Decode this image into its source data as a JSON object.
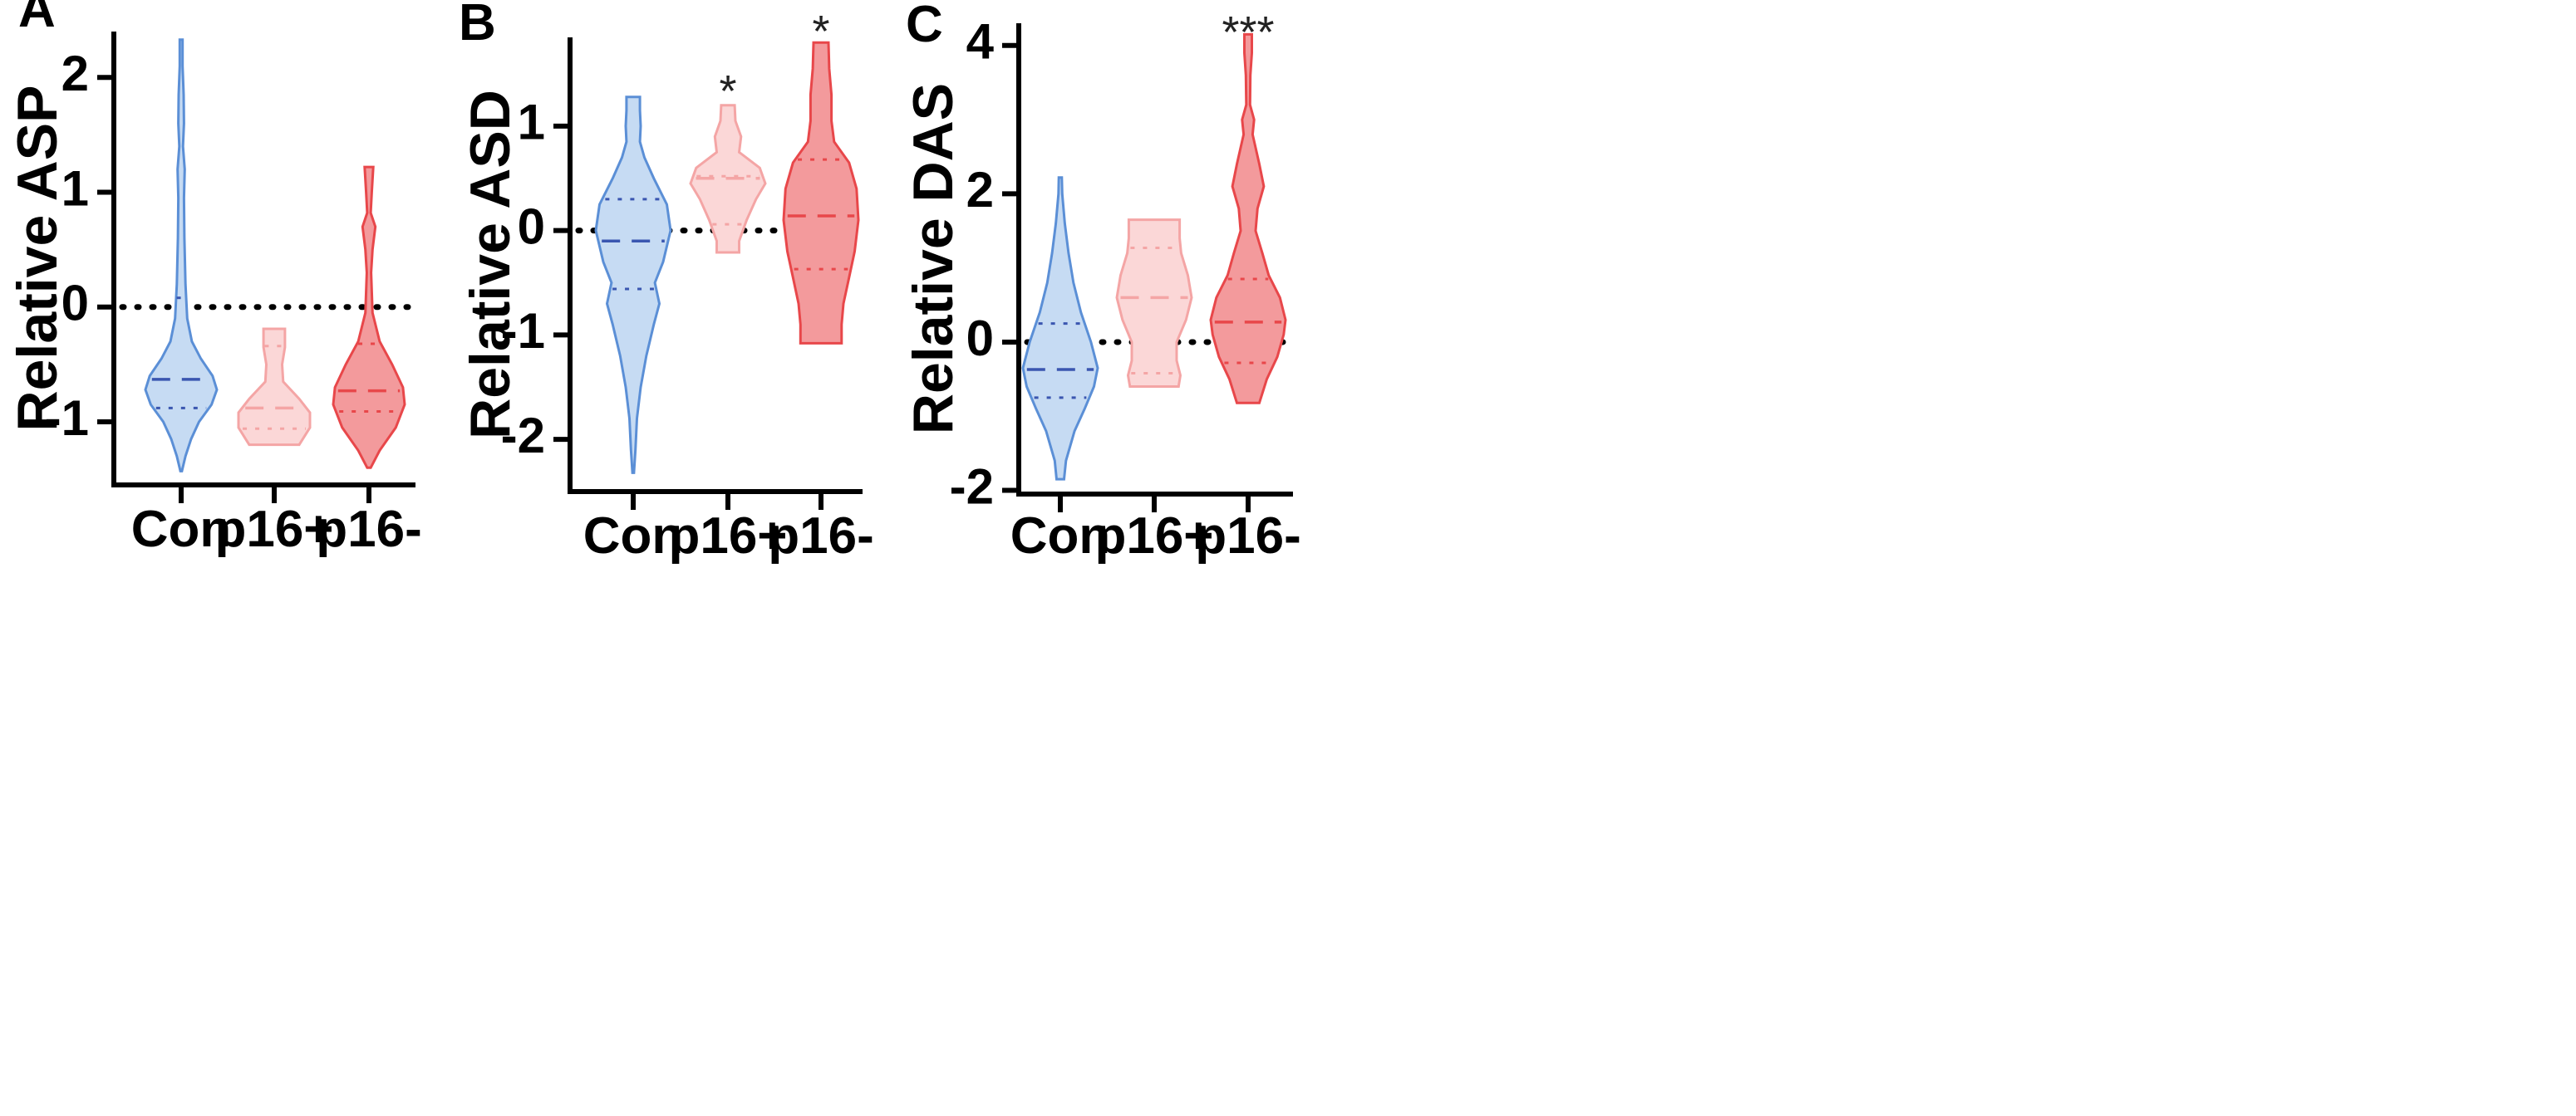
{
  "chart_data": [
    {
      "panel": "A",
      "type": "violin",
      "ylabel": "Relative  ASP",
      "ylim": [
        -1.55,
        2.4
      ],
      "yticks": [
        -1,
        0,
        1,
        2
      ],
      "reference_line": 0,
      "categories": [
        "Con",
        "p16+",
        "p16-"
      ],
      "groups": [
        {
          "name": "Con",
          "color": "#5b8fd6",
          "fill": "#c6dbf3",
          "min": -1.43,
          "max": 2.33,
          "median": -0.63,
          "q1": -0.88,
          "q3": 0.08,
          "profile": [
            [
              -1.43,
              0.02
            ],
            [
              -1.3,
              0.12
            ],
            [
              -1.15,
              0.28
            ],
            [
              -1.0,
              0.5
            ],
            [
              -0.85,
              0.85
            ],
            [
              -0.72,
              1.0
            ],
            [
              -0.6,
              0.88
            ],
            [
              -0.45,
              0.55
            ],
            [
              -0.3,
              0.3
            ],
            [
              -0.1,
              0.17
            ],
            [
              0.2,
              0.12
            ],
            [
              0.6,
              0.09
            ],
            [
              0.95,
              0.08
            ],
            [
              1.2,
              0.1
            ],
            [
              1.4,
              0.05
            ],
            [
              1.6,
              0.08
            ],
            [
              1.85,
              0.07
            ],
            [
              2.1,
              0.04
            ],
            [
              2.33,
              0.04
            ]
          ]
        },
        {
          "name": "p16+",
          "color": "#f4a5a5",
          "fill": "#fbd7d7",
          "min": -1.2,
          "max": -0.19,
          "median": -0.88,
          "q1": -1.06,
          "q3": -0.34,
          "profile": [
            [
              -1.2,
              0.7
            ],
            [
              -1.05,
              1.0
            ],
            [
              -0.92,
              1.0
            ],
            [
              -0.8,
              0.7
            ],
            [
              -0.65,
              0.25
            ],
            [
              -0.5,
              0.22
            ],
            [
              -0.35,
              0.3
            ],
            [
              -0.19,
              0.3
            ]
          ]
        },
        {
          "name": "p16-",
          "color": "#e8474a",
          "fill": "#f39a9c",
          "min": -1.4,
          "max": 1.22,
          "median": -0.73,
          "q1": -0.91,
          "q3": -0.32,
          "profile": [
            [
              -1.4,
              0.05
            ],
            [
              -1.25,
              0.3
            ],
            [
              -1.05,
              0.75
            ],
            [
              -0.85,
              1.0
            ],
            [
              -0.7,
              0.95
            ],
            [
              -0.5,
              0.65
            ],
            [
              -0.3,
              0.3
            ],
            [
              -0.05,
              0.1
            ],
            [
              0.3,
              0.06
            ],
            [
              0.5,
              0.1
            ],
            [
              0.7,
              0.18
            ],
            [
              0.82,
              0.05
            ],
            [
              1.0,
              0.08
            ],
            [
              1.22,
              0.12
            ]
          ]
        }
      ],
      "significance": []
    },
    {
      "panel": "B",
      "type": "violin",
      "ylabel": "Relative ASD",
      "ylim": [
        -2.5,
        1.85
      ],
      "yticks": [
        -2,
        -1,
        0,
        1
      ],
      "reference_line": 0,
      "categories": [
        "Con",
        "p16+",
        "p16-"
      ],
      "groups": [
        {
          "name": "Con",
          "color": "#5b8fd6",
          "fill": "#c6dbf3",
          "min": -2.32,
          "max": 1.28,
          "median": -0.1,
          "q1": -0.56,
          "q3": 0.3,
          "profile": [
            [
              -2.32,
              0.02
            ],
            [
              -2.1,
              0.06
            ],
            [
              -1.8,
              0.1
            ],
            [
              -1.5,
              0.2
            ],
            [
              -1.2,
              0.35
            ],
            [
              -0.9,
              0.55
            ],
            [
              -0.7,
              0.7
            ],
            [
              -0.5,
              0.58
            ],
            [
              -0.3,
              0.8
            ],
            [
              0.0,
              1.0
            ],
            [
              0.25,
              0.9
            ],
            [
              0.5,
              0.55
            ],
            [
              0.7,
              0.3
            ],
            [
              0.85,
              0.18
            ],
            [
              1.0,
              0.2
            ],
            [
              1.15,
              0.18
            ],
            [
              1.28,
              0.18
            ]
          ]
        },
        {
          "name": "p16+",
          "color": "#f4a5a5",
          "fill": "#fbd7d7",
          "min": -0.21,
          "max": 1.2,
          "median": 0.5,
          "q1": 0.06,
          "q3": 0.52,
          "profile": [
            [
              -0.21,
              0.3
            ],
            [
              -0.1,
              0.3
            ],
            [
              0.1,
              0.5
            ],
            [
              0.3,
              0.75
            ],
            [
              0.45,
              1.0
            ],
            [
              0.6,
              0.85
            ],
            [
              0.75,
              0.3
            ],
            [
              0.9,
              0.35
            ],
            [
              1.05,
              0.2
            ],
            [
              1.2,
              0.18
            ]
          ]
        },
        {
          "name": "p16-",
          "color": "#e8474a",
          "fill": "#f39a9c",
          "min": -1.08,
          "max": 1.8,
          "median": 0.14,
          "q1": -0.37,
          "q3": 0.68,
          "profile": [
            [
              -1.08,
              0.55
            ],
            [
              -0.9,
              0.55
            ],
            [
              -0.7,
              0.6
            ],
            [
              -0.45,
              0.75
            ],
            [
              -0.2,
              0.9
            ],
            [
              0.1,
              1.0
            ],
            [
              0.4,
              0.95
            ],
            [
              0.65,
              0.75
            ],
            [
              0.85,
              0.35
            ],
            [
              1.05,
              0.28
            ],
            [
              1.3,
              0.28
            ],
            [
              1.55,
              0.22
            ],
            [
              1.8,
              0.2
            ]
          ]
        }
      ],
      "significance": [
        {
          "group": "p16+",
          "label": "*",
          "y": 1.35
        },
        {
          "group": "p16-",
          "label": "*",
          "y": 1.92
        }
      ]
    },
    {
      "panel": "C",
      "type": "violin",
      "ylabel": "Relative  DAS",
      "ylim": [
        -2.05,
        4.3
      ],
      "yticks": [
        -2,
        0,
        2,
        4
      ],
      "reference_line": 0,
      "categories": [
        "Con",
        "p16+",
        "p16-"
      ],
      "groups": [
        {
          "name": "Con",
          "color": "#5b8fd6",
          "fill": "#c6dbf3",
          "min": -1.85,
          "max": 2.22,
          "median": -0.37,
          "q1": -0.75,
          "q3": 0.25,
          "profile": [
            [
              -1.85,
              0.1
            ],
            [
              -1.6,
              0.15
            ],
            [
              -1.2,
              0.38
            ],
            [
              -0.9,
              0.65
            ],
            [
              -0.6,
              0.9
            ],
            [
              -0.35,
              1.0
            ],
            [
              0.0,
              0.82
            ],
            [
              0.4,
              0.55
            ],
            [
              0.8,
              0.35
            ],
            [
              1.2,
              0.22
            ],
            [
              1.6,
              0.12
            ],
            [
              2.0,
              0.05
            ],
            [
              2.22,
              0.04
            ]
          ]
        },
        {
          "name": "p16+",
          "color": "#f4a5a5",
          "fill": "#fbd7d7",
          "min": -0.6,
          "max": 1.65,
          "median": 0.6,
          "q1": -0.42,
          "q3": 1.27,
          "profile": [
            [
              -0.6,
              0.65
            ],
            [
              -0.45,
              0.7
            ],
            [
              -0.25,
              0.6
            ],
            [
              0.0,
              0.6
            ],
            [
              0.3,
              0.85
            ],
            [
              0.6,
              1.0
            ],
            [
              0.9,
              0.9
            ],
            [
              1.2,
              0.72
            ],
            [
              1.4,
              0.68
            ],
            [
              1.65,
              0.68
            ]
          ]
        },
        {
          "name": "p16-",
          "color": "#e8474a",
          "fill": "#f39a9c",
          "min": -0.82,
          "max": 4.15,
          "median": 0.27,
          "q1": -0.28,
          "q3": 0.85,
          "profile": [
            [
              -0.82,
              0.3
            ],
            [
              -0.5,
              0.5
            ],
            [
              -0.2,
              0.78
            ],
            [
              0.1,
              0.95
            ],
            [
              0.3,
              1.0
            ],
            [
              0.6,
              0.85
            ],
            [
              0.9,
              0.55
            ],
            [
              1.2,
              0.38
            ],
            [
              1.5,
              0.2
            ],
            [
              1.8,
              0.25
            ],
            [
              2.1,
              0.42
            ],
            [
              2.4,
              0.3
            ],
            [
              2.8,
              0.12
            ],
            [
              3.0,
              0.16
            ],
            [
              3.2,
              0.05
            ],
            [
              3.6,
              0.06
            ],
            [
              3.9,
              0.1
            ],
            [
              4.15,
              0.1
            ]
          ]
        }
      ],
      "significance": [
        {
          "group": "p16-",
          "label": "***",
          "y": 4.2
        }
      ]
    }
  ]
}
